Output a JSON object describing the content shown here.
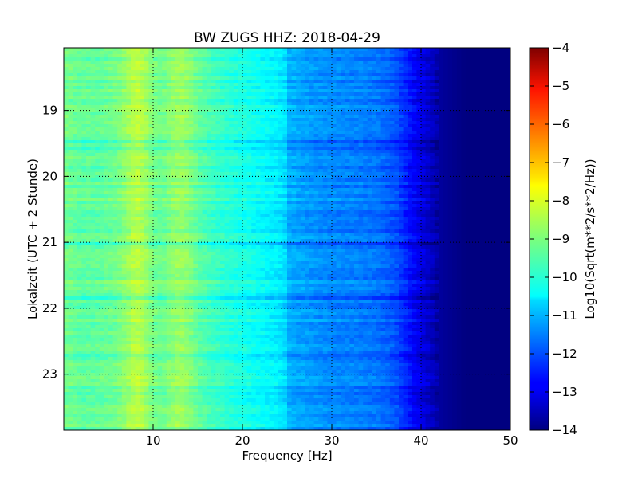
{
  "chart_data": {
    "type": "heatmap",
    "title": "BW ZUGS HHZ: 2018-04-29",
    "xlabel": "Frequency [Hz]",
    "ylabel": "Lokalzeit (UTC + 2 Stunde)",
    "xlim": [
      0,
      50
    ],
    "ylim": [
      18.05,
      23.85
    ],
    "y_inverted": true,
    "xticks": [
      10,
      20,
      30,
      40,
      50
    ],
    "yticks": [
      19,
      20,
      21,
      22,
      23
    ],
    "grid": true,
    "colormap": "jet",
    "colorbar": {
      "label": "Log10(Sqrt(m**2/s**2/Hz))",
      "min": -14,
      "max": -4,
      "ticks": [
        -4,
        -5,
        -6,
        -7,
        -8,
        -9,
        -10,
        -11,
        -12,
        -13,
        -14
      ]
    },
    "frequency_profile": {
      "x": [
        0,
        2,
        4,
        6,
        7,
        8,
        9,
        10,
        11,
        12,
        13,
        14,
        15,
        16,
        18,
        20,
        22,
        24,
        24.8,
        25,
        27,
        30,
        33,
        35,
        37,
        38,
        39,
        40,
        41,
        42,
        45,
        50
      ],
      "y": [
        -9.1,
        -9.3,
        -9.3,
        -9.1,
        -8.8,
        -8.4,
        -8.6,
        -9.1,
        -9.2,
        -8.9,
        -8.7,
        -8.9,
        -9.3,
        -9.5,
        -9.8,
        -10.0,
        -10.2,
        -10.4,
        -10.6,
        -11.0,
        -11.2,
        -11.4,
        -11.5,
        -11.6,
        -11.9,
        -12.3,
        -12.7,
        -13.0,
        -13.3,
        -13.7,
        -14.0,
        -14.0
      ]
    }
  }
}
